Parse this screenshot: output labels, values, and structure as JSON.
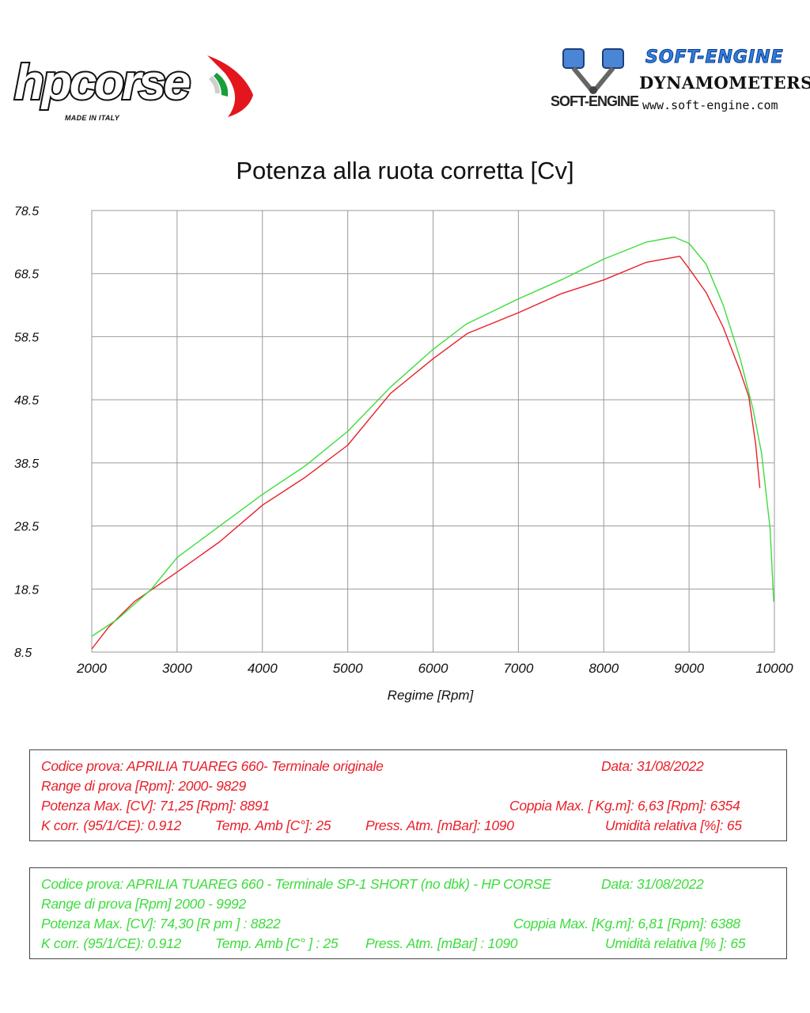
{
  "header": {
    "left_logo": {
      "brand": "hpcorse",
      "tagline": "MADE IN ITALY",
      "icon": "italian-flag-swoosh-icon"
    },
    "right_logo": {
      "title": "SOFT-ENGINE",
      "subtitle": "DYNAMOMETERS",
      "website": "www.soft-engine.com",
      "mark": "SOFT-ENGINE",
      "icon": "piston-icon"
    }
  },
  "colors": {
    "red_series": "#e8202a",
    "green_series": "#3ddc3d",
    "grid": "#9a9a9a"
  },
  "chart_data": {
    "type": "line",
    "title": "Potenza alla ruota corretta [Cv]",
    "xlabel": "Regime [Rpm]",
    "ylabel": "",
    "xlim": [
      2000,
      10000
    ],
    "ylim": [
      8.5,
      78.5
    ],
    "x_ticks": [
      "2000",
      "3000",
      "4000",
      "5000",
      "6000",
      "7000",
      "8000",
      "9000",
      "10000"
    ],
    "y_ticks": [
      "78.5",
      "68.5",
      "58.5",
      "48.5",
      "38.5",
      "28.5",
      "18.5",
      "8.5"
    ],
    "grid": true,
    "series": [
      {
        "color": "#e8202a",
        "points": [
          [
            2000,
            9.0
          ],
          [
            2200,
            12.5
          ],
          [
            2500,
            16.5
          ],
          [
            3000,
            21.2
          ],
          [
            3500,
            26.0
          ],
          [
            4000,
            31.8
          ],
          [
            4500,
            36.2
          ],
          [
            5000,
            41.3
          ],
          [
            5500,
            49.5
          ],
          [
            6000,
            55.0
          ],
          [
            6400,
            59.0
          ],
          [
            7000,
            62.3
          ],
          [
            7500,
            65.3
          ],
          [
            8000,
            67.5
          ],
          [
            8500,
            70.3
          ],
          [
            8891,
            71.25
          ],
          [
            9000,
            69.3
          ],
          [
            9200,
            65.5
          ],
          [
            9400,
            60.0
          ],
          [
            9600,
            53.0
          ],
          [
            9700,
            49.0
          ],
          [
            9780,
            41.5
          ],
          [
            9829,
            34.5
          ]
        ]
      },
      {
        "color": "#3ddc3d",
        "points": [
          [
            2000,
            11.0
          ],
          [
            2300,
            13.7
          ],
          [
            2700,
            18.5
          ],
          [
            3000,
            23.5
          ],
          [
            3500,
            28.5
          ],
          [
            4000,
            33.5
          ],
          [
            4500,
            38.0
          ],
          [
            5000,
            43.5
          ],
          [
            5500,
            50.5
          ],
          [
            6000,
            56.5
          ],
          [
            6388,
            60.5
          ],
          [
            7000,
            64.5
          ],
          [
            7500,
            67.5
          ],
          [
            8000,
            70.8
          ],
          [
            8500,
            73.5
          ],
          [
            8822,
            74.3
          ],
          [
            9000,
            73.3
          ],
          [
            9200,
            70.0
          ],
          [
            9400,
            63.5
          ],
          [
            9600,
            55.0
          ],
          [
            9750,
            47.0
          ],
          [
            9850,
            40.0
          ],
          [
            9950,
            28.0
          ],
          [
            9992,
            16.5
          ]
        ]
      }
    ]
  },
  "tests": [
    {
      "lines": {
        "codice": "Codice prova: APRILIA TUAREG 660- Terminale originale",
        "data": "Data: 31/08/2022",
        "range": "Range di prova  [Rpm]: 2000- 9829",
        "potenza": "Potenza Max. [CV]:  71,25  [Rpm]:  8891",
        "coppia": "Coppia Max. [ Kg.m]:  6,63 [Rpm]: 6354",
        "kcorr": "K corr. (95/1/CE): 0.912",
        "temp": "Temp. Amb  [C°]: 25",
        "press": "Press. Atm.  [mBar]: 1090",
        "umidita": "Umidità relativa [%]: 65"
      }
    },
    {
      "lines": {
        "codice": "Codice prova: APRILIA TUAREG 660 - Terminale SP-1 SHORT  (no dbk) - HP CORSE",
        "data": "Data: 31/08/2022",
        "range": "Range di prova [Rpm] 2000 - 9992",
        "potenza": "Potenza Max. [CV]:  74,30   [R pm ] : 8822",
        "coppia": "Coppia Max.  [Kg.m]:  6,81  [Rpm]: 6388",
        "kcorr": "K corr. (95/1/CE): 0.912",
        "temp": "Temp. Amb [C° ] : 25",
        "press": "Press. Atm. [mBar] : 1090",
        "umidita": "Umidità relativa [% ]: 65"
      }
    }
  ]
}
